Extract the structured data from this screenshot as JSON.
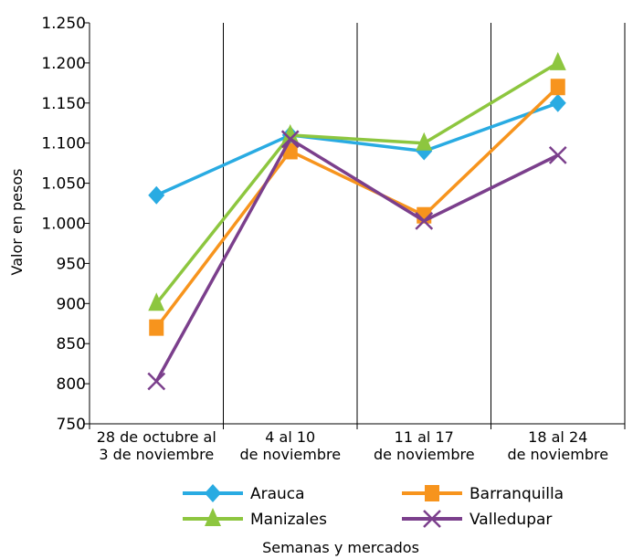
{
  "chart_data": {
    "type": "line",
    "xlabel": "Semanas y mercados",
    "ylabel": "Valor en pesos",
    "ylim": [
      750,
      1250
    ],
    "ytick_step": 50,
    "grid": "vertical",
    "legend_position": "bottom",
    "categories": [
      [
        "28 de octubre al",
        "3 de noviembre"
      ],
      [
        "4 al 10",
        "de noviembre"
      ],
      [
        "11 al 17",
        "de noviembre"
      ],
      [
        "18 al 24",
        "de noviembre"
      ]
    ],
    "y_tick_labels": [
      "750",
      "800",
      "850",
      "900",
      "950",
      "1.000",
      "1.050",
      "1.100",
      "1.150",
      "1.200",
      "1.250"
    ],
    "series": [
      {
        "name": "Arauca",
        "color": "#29ABE2",
        "marker": "diamond",
        "values": [
          1035,
          1110,
          1090,
          1150
        ]
      },
      {
        "name": "Barranquilla",
        "color": "#F7941D",
        "marker": "square",
        "values": [
          870,
          1090,
          1010,
          1170
        ]
      },
      {
        "name": "Manizales",
        "color": "#8DC63F",
        "marker": "triangle",
        "values": [
          900,
          1110,
          1100,
          1200
        ]
      },
      {
        "name": "Valledupar",
        "color": "#7B3F8C",
        "marker": "x",
        "values": [
          803,
          1105,
          1003,
          1085
        ]
      }
    ]
  }
}
